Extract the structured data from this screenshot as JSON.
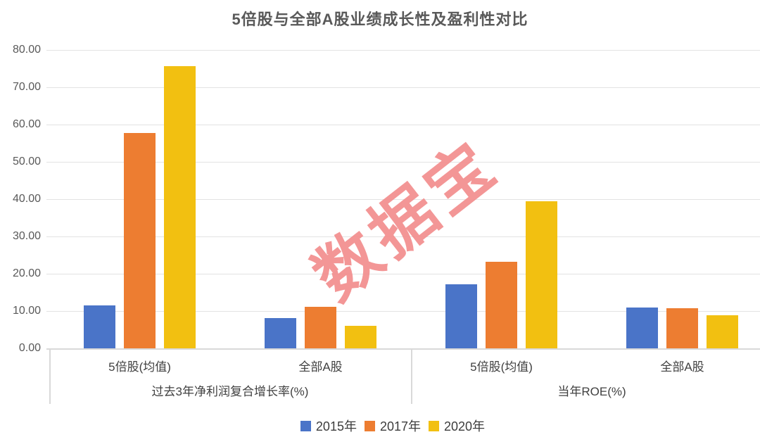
{
  "title": "5倍股与全部A股业绩成长性及盈利性对比",
  "watermark": "数据宝",
  "colors": {
    "series_2015": "#4A74C8",
    "series_2017": "#ED7D31",
    "series_2020": "#F2C011",
    "watermark": "#F28B8B",
    "gridline": "#E3E3E3",
    "axis_border": "#D9D9D9",
    "title_text": "#595959"
  },
  "chart_data": {
    "type": "bar",
    "title": "5倍股与全部A股业绩成长性及盈利性对比",
    "ylabel": "",
    "xlabel": "",
    "ylim": [
      0,
      80
    ],
    "ytick_step": 10,
    "ytick_labels": [
      "80.00",
      "70.00",
      "60.00",
      "50.00",
      "40.00",
      "30.00",
      "20.00",
      "10.00",
      "0.00"
    ],
    "grid": true,
    "legend_position": "bottom",
    "groups": [
      "过去3年净利润复合增长率(%)",
      "当年ROE(%)"
    ],
    "categories": [
      "5倍股(均值)",
      "全部A股",
      "5倍股(均值)",
      "全部A股"
    ],
    "series": [
      {
        "name": "2015年",
        "color": "#4A74C8",
        "values": [
          11.5,
          8.1,
          17.1,
          10.9
        ]
      },
      {
        "name": "2017年",
        "color": "#ED7D31",
        "values": [
          57.7,
          11.1,
          23.3,
          10.7
        ]
      },
      {
        "name": "2020年",
        "color": "#F2C011",
        "values": [
          75.7,
          6.0,
          39.4,
          8.9
        ]
      }
    ]
  }
}
